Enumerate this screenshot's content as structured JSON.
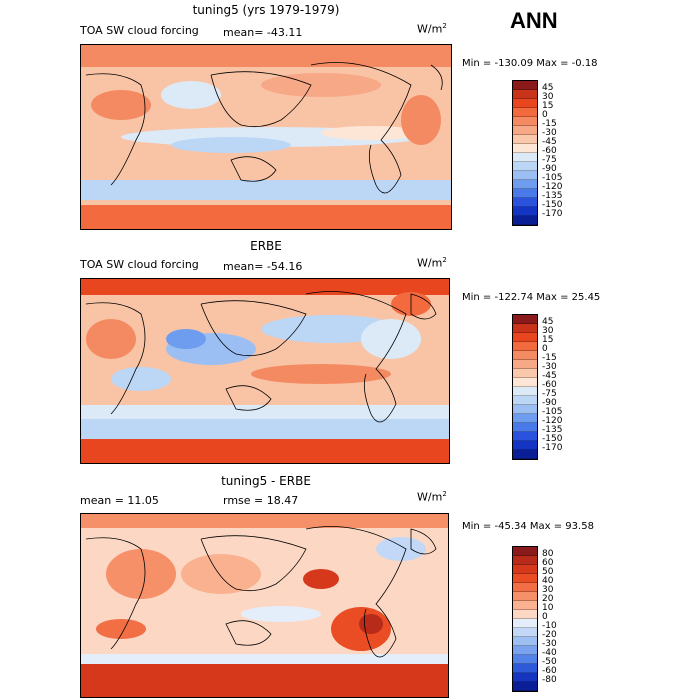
{
  "header": {
    "season": "ANN"
  },
  "panels": [
    {
      "title": "tuning5 (yrs 1979-1979)",
      "left_label": "TOA SW cloud forcing",
      "mean_label": "mean= -43.11",
      "units_base": "W/m",
      "units_exp": "2",
      "minmax": "Min = -130.09 Max =  -0.18",
      "levels": [
        "45",
        "30",
        "15",
        "0",
        "-15",
        "-30",
        "-45",
        "-60",
        "-75",
        "-90",
        "-105",
        "-120",
        "-135",
        "-150",
        "-170"
      ],
      "colors": [
        "#8b1a1a",
        "#c8331a",
        "#e8461e",
        "#f26a3e",
        "#f48a62",
        "#f7a886",
        "#fac8aa",
        "#fde6d6",
        "#dceaf8",
        "#bcd6f6",
        "#9cbff3",
        "#6e9cef",
        "#4a79ea",
        "#2b52dd",
        "#1434c4",
        "#0a1f96"
      ]
    },
    {
      "title": "ERBE",
      "left_label": "TOA SW cloud forcing",
      "mean_label": "mean= -54.16",
      "units_base": "W/m",
      "units_exp": "2",
      "minmax": "Min = -122.74 Max =  25.45",
      "levels": [
        "45",
        "30",
        "15",
        "0",
        "-15",
        "-30",
        "-45",
        "-60",
        "-75",
        "-90",
        "-105",
        "-120",
        "-135",
        "-150",
        "-170"
      ],
      "colors": [
        "#8b1a1a",
        "#c8331a",
        "#e8461e",
        "#f26a3e",
        "#f48a62",
        "#f7a886",
        "#fac8aa",
        "#fde6d6",
        "#dceaf8",
        "#bcd6f6",
        "#9cbff3",
        "#6e9cef",
        "#4a79ea",
        "#2b52dd",
        "#1434c4",
        "#0a1f96"
      ]
    },
    {
      "title": "tuning5 - ERBE",
      "left_label": "mean =  11.05",
      "mean_label": "rmse =  18.47",
      "units_base": "W/m",
      "units_exp": "2",
      "minmax": "Min = -45.34 Max =  93.58",
      "levels": [
        "80",
        "60",
        "50",
        "40",
        "30",
        "20",
        "10",
        "0",
        "-10",
        "-20",
        "-30",
        "-40",
        "-50",
        "-60",
        "-80"
      ],
      "colors": [
        "#8b1a1a",
        "#b82a1a",
        "#d6381c",
        "#ea4c24",
        "#f26e44",
        "#f69068",
        "#f9b190",
        "#fcd8c4",
        "#e4eefa",
        "#c2d8f6",
        "#9dbff2",
        "#7aa2ee",
        "#5382e8",
        "#2e5ada",
        "#1535bf",
        "#0a1f96"
      ]
    }
  ]
}
